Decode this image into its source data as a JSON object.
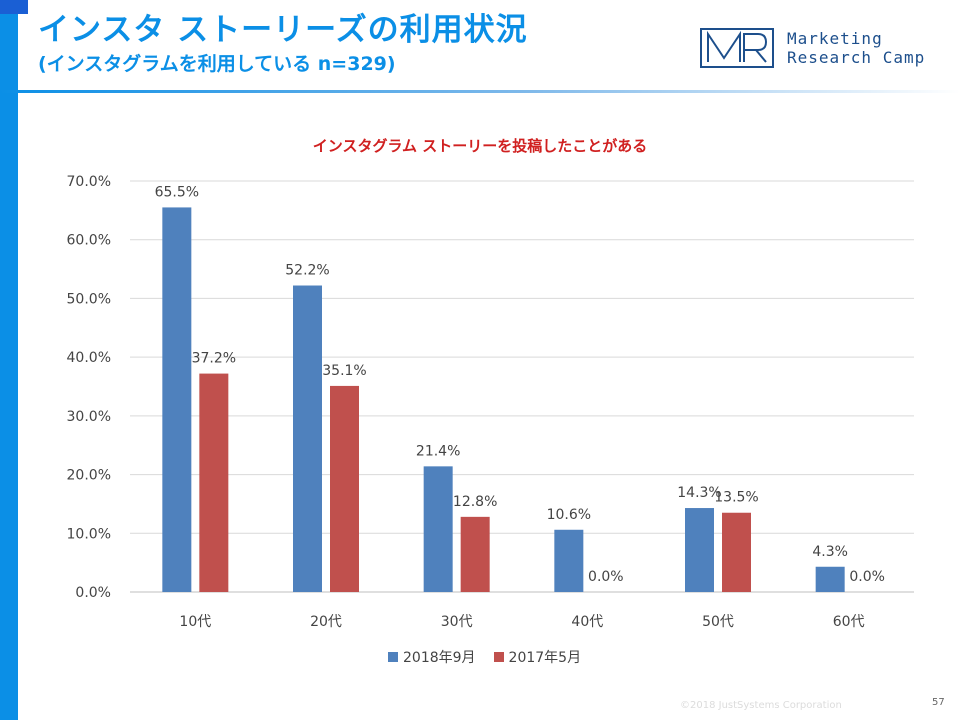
{
  "header": {
    "title": "インスタ ストーリーズの利用状況",
    "subtitle": "(インスタグラムを利用している n=329)"
  },
  "logo": {
    "mark": "MR",
    "line1": "Marketing",
    "line2": "Research Camp"
  },
  "colors": {
    "brand_blue": "#0b8fe6",
    "series_2018": "#4f81bd",
    "series_2017": "#c0504d",
    "title_red": "#d02020"
  },
  "chart_data": {
    "type": "bar",
    "title": "インスタグラム ストーリーを投稿したことがある",
    "categories": [
      "10代",
      "20代",
      "30代",
      "40代",
      "50代",
      "60代"
    ],
    "series": [
      {
        "name": "2018年9月",
        "values": [
          65.5,
          52.2,
          21.4,
          10.6,
          14.3,
          4.3
        ]
      },
      {
        "name": "2017年5月",
        "values": [
          37.2,
          35.1,
          12.8,
          0.0,
          13.5,
          0.0
        ]
      }
    ],
    "yticks": [
      "0.0%",
      "10.0%",
      "20.0%",
      "30.0%",
      "40.0%",
      "50.0%",
      "60.0%",
      "70.0%"
    ],
    "ylim": [
      0,
      70
    ],
    "xlabel": "",
    "ylabel": "",
    "legend_position": "bottom"
  },
  "footer": {
    "copyright": "©2018 JustSystems Corporation",
    "page_number": "57"
  }
}
